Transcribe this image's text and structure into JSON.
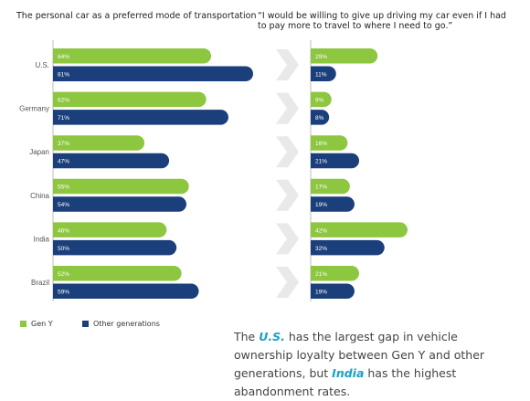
{
  "chart_data": [
    {
      "type": "bar",
      "orientation": "horizontal",
      "title": "The personal car as a preferred mode of transportation",
      "categories": [
        "U.S.",
        "Germany",
        "Japan",
        "China",
        "India",
        "Brazil"
      ],
      "series": [
        {
          "name": "Gen Y",
          "values": [
            64,
            62,
            37,
            55,
            46,
            52
          ],
          "color": "#8dc63f"
        },
        {
          "name": "Other generations",
          "values": [
            81,
            71,
            47,
            54,
            50,
            59
          ],
          "color": "#1a3f7a"
        }
      ],
      "value_labels": [
        [
          "64%",
          "62%",
          "37%",
          "55%",
          "46%",
          "52%"
        ],
        [
          "81%",
          "71%",
          "47%",
          "54%",
          "50%",
          "59%"
        ]
      ],
      "legend": "bottom-left"
    },
    {
      "type": "bar",
      "orientation": "horizontal",
      "title": "“I would be willing to give up driving my car even if I had to pay more to travel to where I need to go.”",
      "categories": [
        "U.S.",
        "Germany",
        "Japan",
        "China",
        "India",
        "Brazil"
      ],
      "series": [
        {
          "name": "Gen Y",
          "values": [
            29,
            9,
            16,
            17,
            42,
            21
          ],
          "color": "#8dc63f"
        },
        {
          "name": "Other generations",
          "values": [
            11,
            8,
            21,
            19,
            32,
            19
          ],
          "color": "#1a3f7a"
        }
      ],
      "value_labels": [
        [
          "29%",
          "9%",
          "16%",
          "17%",
          "42%",
          "21%"
        ],
        [
          "11%",
          "8%",
          "21%",
          "19%",
          "32%",
          "19%"
        ]
      ]
    }
  ],
  "legend": {
    "gen_y": "Gen Y",
    "other": "Other generations"
  },
  "note": {
    "p1": "The ",
    "us": "U.S.",
    "p2": " has the largest gap in vehicle ownership loyalty between Gen Y and other generations, but ",
    "india": "India",
    "p3": " has the highest abandonment rates."
  },
  "colors": {
    "gen_y": "#8dc63f",
    "other": "#1a3f7a",
    "arrow": "#e9e9e9",
    "highlight": "#1aa0c8"
  }
}
